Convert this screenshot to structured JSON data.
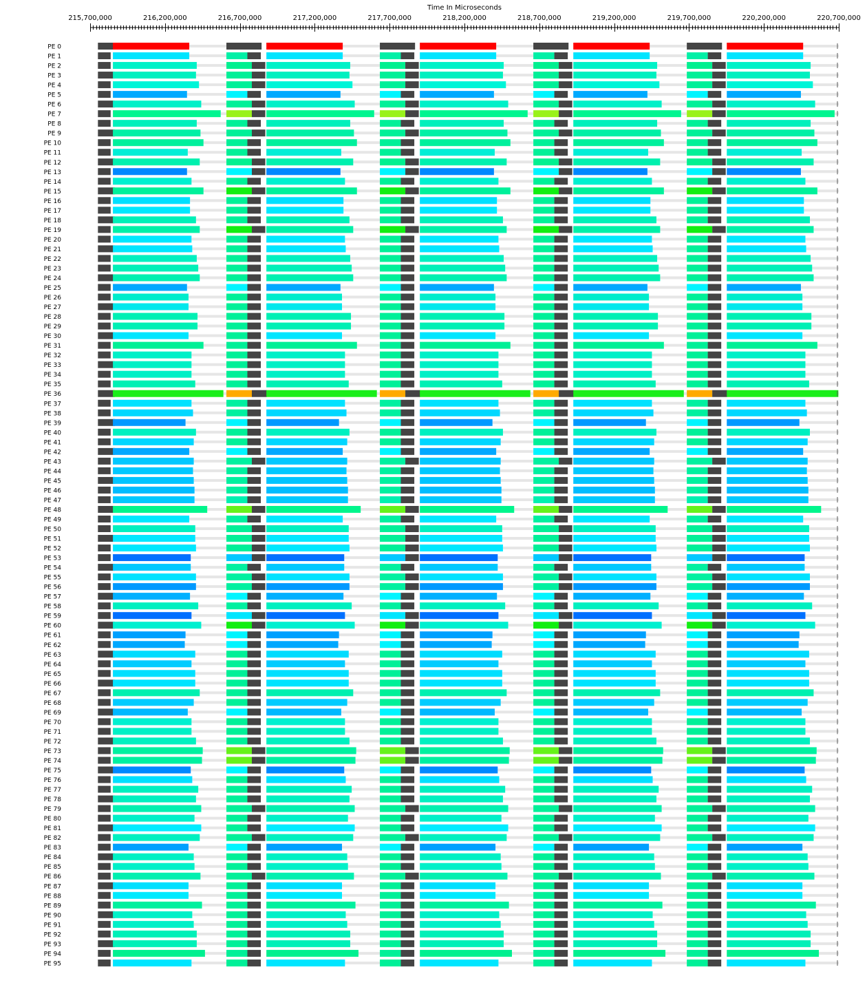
{
  "chart_data": {
    "type": "timeline",
    "title": "Time In Microseconds",
    "xlim": [
      215700000,
      220700000
    ],
    "tick_values": [
      215700000,
      216200000,
      216700000,
      217200000,
      217700000,
      218200000,
      218700000,
      219200000,
      219700000,
      220200000,
      220700000
    ],
    "tick_labels": [
      "215,700,000",
      "216,200,000",
      "216,700,000",
      "217,200,000",
      "217,700,000",
      "218,200,000",
      "218,700,000",
      "219,200,000",
      "219,700,000",
      "220,200,000",
      "220,700,000"
    ],
    "minor_tick_step": 20000,
    "rows": [
      "PE 0",
      "PE 1",
      "PE 2",
      "PE 3",
      "PE 4",
      "PE 5",
      "PE 6",
      "PE 7",
      "PE 8",
      "PE 9",
      "PE 10",
      "PE 11",
      "PE 12",
      "PE 13",
      "PE 14",
      "PE 15",
      "PE 16",
      "PE 17",
      "PE 18",
      "PE 19",
      "PE 20",
      "PE 21",
      "PE 22",
      "PE 23",
      "PE 24",
      "PE 25",
      "PE 26",
      "PE 27",
      "PE 28",
      "PE 29",
      "PE 30",
      "PE 31",
      "PE 32",
      "PE 33",
      "PE 34",
      "PE 35",
      "PE 36",
      "PE 37",
      "PE 38",
      "PE 39",
      "PE 40",
      "PE 41",
      "PE 42",
      "PE 43",
      "PE 44",
      "PE 45",
      "PE 46",
      "PE 47",
      "PE 48",
      "PE 49",
      "PE 50",
      "PE 51",
      "PE 52",
      "PE 53",
      "PE 54",
      "PE 55",
      "PE 56",
      "PE 57",
      "PE 58",
      "PE 59",
      "PE 60",
      "PE 61",
      "PE 62",
      "PE 63",
      "PE 64",
      "PE 65",
      "PE 66",
      "PE 67",
      "PE 68",
      "PE 69",
      "PE 70",
      "PE 71",
      "PE 72",
      "PE 73",
      "PE 74",
      "PE 75",
      "PE 76",
      "PE 77",
      "PE 78",
      "PE 79",
      "PE 80",
      "PE 81",
      "PE 82",
      "PE 83",
      "PE 84",
      "PE 85",
      "PE 86",
      "PE 87",
      "PE 88",
      "PE 89",
      "PE 90",
      "PE 91",
      "PE 92",
      "PE 93",
      "PE 94",
      "PE 95"
    ],
    "period_us": 1025000,
    "cycles": [
      {
        "long_start": 215852000,
        "short_start": 216610000
      },
      {
        "long_start": 216877000,
        "short_start": 217635000
      },
      {
        "long_start": 217902000,
        "short_start": 218660000
      },
      {
        "long_start": 218927000,
        "short_start": 219685000
      },
      {
        "long_start": 219952000,
        "short_start": null
      }
    ],
    "long_bar_duration_us": [
      510000,
      510000,
      560000,
      555000,
      575000,
      495000,
      590000,
      720000,
      560000,
      585000,
      605000,
      500000,
      580000,
      495000,
      525000,
      605000,
      515000,
      515000,
      555000,
      580000,
      525000,
      530000,
      560000,
      570000,
      580000,
      495000,
      505000,
      505000,
      565000,
      565000,
      505000,
      605000,
      525000,
      525000,
      525000,
      550000,
      745000,
      525000,
      535000,
      485000,
      555000,
      540000,
      510000,
      540000,
      535000,
      540000,
      545000,
      545000,
      630000,
      510000,
      550000,
      550000,
      555000,
      520000,
      520000,
      555000,
      555000,
      515000,
      570000,
      525000,
      590000,
      485000,
      480000,
      550000,
      525000,
      550000,
      550000,
      580000,
      540000,
      500000,
      525000,
      525000,
      555000,
      600000,
      595000,
      520000,
      530000,
      570000,
      555000,
      590000,
      545000,
      590000,
      580000,
      505000,
      540000,
      545000,
      585000,
      505000,
      505000,
      595000,
      530000,
      540000,
      560000,
      560000,
      615000,
      525000
    ],
    "short_bar_duration_us": [
      0,
      140000,
      170000,
      170000,
      170000,
      140000,
      170000,
      170000,
      140000,
      170000,
      140000,
      140000,
      170000,
      170000,
      140000,
      170000,
      140000,
      140000,
      140000,
      170000,
      140000,
      140000,
      140000,
      140000,
      140000,
      140000,
      140000,
      140000,
      140000,
      140000,
      140000,
      140000,
      140000,
      140000,
      140000,
      140000,
      170000,
      140000,
      140000,
      140000,
      140000,
      140000,
      140000,
      170000,
      140000,
      140000,
      140000,
      140000,
      170000,
      140000,
      170000,
      170000,
      170000,
      170000,
      140000,
      170000,
      170000,
      140000,
      140000,
      170000,
      170000,
      140000,
      140000,
      140000,
      140000,
      140000,
      140000,
      140000,
      140000,
      140000,
      140000,
      140000,
      140000,
      170000,
      170000,
      140000,
      140000,
      140000,
      140000,
      170000,
      140000,
      140000,
      170000,
      140000,
      140000,
      140000,
      170000,
      140000,
      140000,
      140000,
      140000,
      140000,
      140000,
      140000,
      140000,
      140000
    ],
    "dark_block_duration_us": [
      235000,
      90000,
      90000,
      90000,
      90000,
      90000,
      90000,
      90000,
      90000,
      90000,
      90000,
      90000,
      90000,
      90000,
      90000,
      90000,
      90000,
      90000,
      90000,
      90000,
      90000,
      90000,
      90000,
      90000,
      90000,
      90000,
      90000,
      90000,
      90000,
      90000,
      90000,
      90000,
      90000,
      90000,
      90000,
      90000,
      100000,
      90000,
      90000,
      90000,
      90000,
      90000,
      90000,
      90000,
      90000,
      90000,
      90000,
      90000,
      90000,
      90000,
      90000,
      90000,
      90000,
      90000,
      90000,
      90000,
      90000,
      90000,
      90000,
      90000,
      90000,
      90000,
      90000,
      90000,
      90000,
      90000,
      90000,
      90000,
      90000,
      90000,
      90000,
      90000,
      90000,
      90000,
      90000,
      90000,
      90000,
      90000,
      90000,
      90000,
      90000,
      90000,
      90000,
      90000,
      90000,
      90000,
      90000,
      90000,
      90000,
      90000,
      90000,
      90000,
      90000,
      90000,
      90000,
      90000
    ],
    "row_long_color": [
      "#ff0000",
      "#00e5ff",
      "#00f2c8",
      "#00f0c0",
      "#00f5d8",
      "#00aaff",
      "#00f0c8",
      "#00f590",
      "#00f0bc",
      "#00f0a6",
      "#00f09c",
      "#00eed6",
      "#00f0ae",
      "#0088ff",
      "#00f0d0",
      "#00f09a",
      "#00e0ff",
      "#00e8ff",
      "#00f0b8",
      "#00f0a8",
      "#00e8ff",
      "#00e6ff",
      "#00f0c0",
      "#00f0b8",
      "#00f0b0",
      "#00a8ff",
      "#00eccc",
      "#00e8ec",
      "#00f0b4",
      "#00f0b4",
      "#00e6ff",
      "#00f096",
      "#00f0c8",
      "#00f0c6",
      "#00f0c6",
      "#00f0b4",
      "#1aee1a",
      "#00e2ff",
      "#00d8ff",
      "#0099ff",
      "#00f0c0",
      "#00d6ff",
      "#00a8ff",
      "#00c8ff",
      "#00c8ff",
      "#00c4ff",
      "#00bcff",
      "#00c8ff",
      "#00f58c",
      "#00e8ff",
      "#00f0c0",
      "#00e8ff",
      "#00e8ff",
      "#0070ff",
      "#00c8ff",
      "#00e2ff",
      "#0099ff",
      "#00b0ff",
      "#00f0c0",
      "#0070ff",
      "#00f0d0",
      "#00a0ff",
      "#00a8ff",
      "#00dcff",
      "#00ccff",
      "#00e0ff",
      "#00e4ff",
      "#00f0b0",
      "#00ccff",
      "#00b8ff",
      "#00f0d0",
      "#00f0c6",
      "#00f0c0",
      "#00f0a0",
      "#00f0a0",
      "#0088ff",
      "#00e0ff",
      "#00f0c0",
      "#00f0c0",
      "#00f0b0",
      "#00f0c8",
      "#00ecff",
      "#00f0c0",
      "#00a0ff",
      "#00f0c4",
      "#00f0c8",
      "#00f0b0",
      "#00e0ff",
      "#00eaff",
      "#00f09e",
      "#00f0c8",
      "#00f0c8",
      "#00f0b8",
      "#00f0b8",
      "#00f090",
      "#00e6ff"
    ],
    "row_short_color": [
      "#444444",
      "#00f0a6",
      "#00f090",
      "#00f098",
      "#00f098",
      "#00f5ff",
      "#00f098",
      "#99f21a",
      "#00f098",
      "#00f098",
      "#00f098",
      "#00f098",
      "#00f090",
      "#00f5ff",
      "#00f098",
      "#11ee11",
      "#00f098",
      "#00f098",
      "#00f098",
      "#11ee11",
      "#00f098",
      "#00f098",
      "#00f098",
      "#00f098",
      "#00f098",
      "#00f5ff",
      "#00f098",
      "#00f098",
      "#00f098",
      "#00f098",
      "#00f098",
      "#00f098",
      "#00f098",
      "#00f098",
      "#00f098",
      "#00f098",
      "#ffaa00",
      "#00f0a0",
      "#00f0a0",
      "#00f5ff",
      "#00f098",
      "#00f098",
      "#00f5ff",
      "#00f0a0",
      "#00f0a0",
      "#00f0a0",
      "#00f0a0",
      "#00f0b0",
      "#66f21a",
      "#00f0a0",
      "#00f098",
      "#00f098",
      "#00f098",
      "#00c8ff",
      "#00f0a0",
      "#00f0a0",
      "#00f0a0",
      "#00f5ff",
      "#00f0a0",
      "#00e6ff",
      "#11ee11",
      "#00f5ff",
      "#00f5ff",
      "#00f098",
      "#00f098",
      "#00f098",
      "#00f098",
      "#00f098",
      "#00f098",
      "#00f5ff",
      "#00f098",
      "#00f098",
      "#00f098",
      "#66f21a",
      "#66f21a",
      "#00f5ff",
      "#00f098",
      "#00f098",
      "#00f098",
      "#00f098",
      "#00f098",
      "#00f098",
      "#00f098",
      "#00f5ff",
      "#00f098",
      "#00f098",
      "#00f098",
      "#00f098",
      "#00f098",
      "#00f098",
      "#00f098",
      "#00f098",
      "#00f098",
      "#00f098",
      "#00f098",
      "#00f098"
    ],
    "row_overhead_color": "#444444",
    "idle_color": "#e6e6e6",
    "grid": false,
    "legend": "none"
  }
}
